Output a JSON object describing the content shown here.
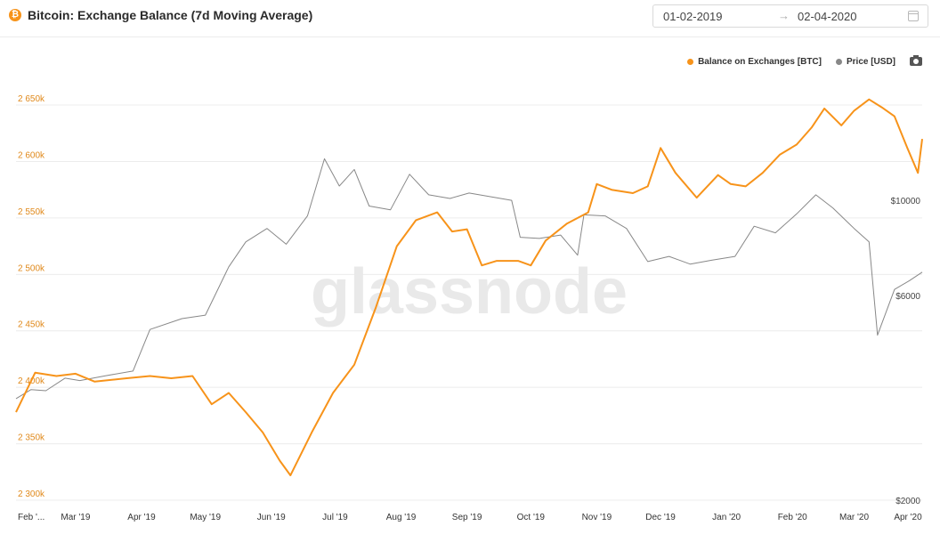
{
  "header": {
    "icon": "bitcoin-icon",
    "icon_glyph": "₿",
    "title": "Bitcoin: Exchange Balance (7d Moving Average)"
  },
  "date_range": {
    "start": "01-02-2019",
    "arrow": "→",
    "end": "02-04-2020",
    "icon": "calendar-icon"
  },
  "legend": {
    "items": [
      {
        "label": "Balance on Exchanges [BTC]",
        "color": "#f7931a"
      },
      {
        "label": "Price [USD]",
        "color": "#888888"
      }
    ],
    "camera_icon": "camera-icon"
  },
  "watermark": "glassnode",
  "chart_data": {
    "type": "line",
    "title": "Bitcoin: Exchange Balance (7d Moving Average)",
    "x_range": [
      "2019-02-01",
      "2020-04-02"
    ],
    "x_ticks": [
      {
        "label": "Feb '...",
        "date": "2019-02-01"
      },
      {
        "label": "Mar '19",
        "date": "2019-03-01"
      },
      {
        "label": "Apr '19",
        "date": "2019-04-01"
      },
      {
        "label": "May '19",
        "date": "2019-05-01"
      },
      {
        "label": "Jun '19",
        "date": "2019-06-01"
      },
      {
        "label": "Jul '19",
        "date": "2019-07-01"
      },
      {
        "label": "Aug '19",
        "date": "2019-08-01"
      },
      {
        "label": "Sep '19",
        "date": "2019-09-01"
      },
      {
        "label": "Oct '19",
        "date": "2019-10-01"
      },
      {
        "label": "Nov '19",
        "date": "2019-11-01"
      },
      {
        "label": "Dec '19",
        "date": "2019-12-01"
      },
      {
        "label": "Jan '20",
        "date": "2020-01-01"
      },
      {
        "label": "Feb '20",
        "date": "2020-02-01"
      },
      {
        "label": "Mar '20",
        "date": "2020-03-01"
      },
      {
        "label": "Apr '20",
        "date": "2020-04-01"
      }
    ],
    "left_axis": {
      "range": [
        2300000,
        2680000
      ],
      "ticks": [
        {
          "label": "2 300k",
          "value": 2300000
        },
        {
          "label": "2 350k",
          "value": 2350000
        },
        {
          "label": "2 400k",
          "value": 2400000
        },
        {
          "label": "2 450k",
          "value": 2450000
        },
        {
          "label": "2 500k",
          "value": 2500000
        },
        {
          "label": "2 550k",
          "value": 2550000
        },
        {
          "label": "2 600k",
          "value": 2600000
        },
        {
          "label": "2 650k",
          "value": 2650000
        }
      ]
    },
    "right_axis": {
      "scale": "log",
      "range": [
        2000,
        20000
      ],
      "ticks": [
        {
          "label": "$2000",
          "value": 2000
        },
        {
          "label": "$6000",
          "value": 6000
        },
        {
          "label": "$10000",
          "value": 10000
        }
      ]
    },
    "grid": true,
    "series": [
      {
        "name": "Balance on Exchanges [BTC]",
        "axis": "left",
        "color": "#f7931a",
        "points": [
          [
            "2019-02-01",
            2378000
          ],
          [
            "2019-02-10",
            2413000
          ],
          [
            "2019-02-20",
            2410000
          ],
          [
            "2019-03-01",
            2412000
          ],
          [
            "2019-03-10",
            2405000
          ],
          [
            "2019-03-25",
            2408000
          ],
          [
            "2019-04-05",
            2410000
          ],
          [
            "2019-04-15",
            2408000
          ],
          [
            "2019-04-25",
            2410000
          ],
          [
            "2019-05-04",
            2385000
          ],
          [
            "2019-05-12",
            2395000
          ],
          [
            "2019-05-20",
            2378000
          ],
          [
            "2019-05-28",
            2360000
          ],
          [
            "2019-06-05",
            2335000
          ],
          [
            "2019-06-10",
            2322000
          ],
          [
            "2019-06-20",
            2360000
          ],
          [
            "2019-06-30",
            2395000
          ],
          [
            "2019-07-10",
            2420000
          ],
          [
            "2019-07-20",
            2470000
          ],
          [
            "2019-07-30",
            2525000
          ],
          [
            "2019-08-08",
            2548000
          ],
          [
            "2019-08-18",
            2555000
          ],
          [
            "2019-08-25",
            2538000
          ],
          [
            "2019-09-01",
            2540000
          ],
          [
            "2019-09-08",
            2508000
          ],
          [
            "2019-09-15",
            2512000
          ],
          [
            "2019-09-25",
            2512000
          ],
          [
            "2019-10-01",
            2508000
          ],
          [
            "2019-10-08",
            2530000
          ],
          [
            "2019-10-18",
            2545000
          ],
          [
            "2019-10-28",
            2555000
          ],
          [
            "2019-11-01",
            2580000
          ],
          [
            "2019-11-08",
            2575000
          ],
          [
            "2019-11-18",
            2572000
          ],
          [
            "2019-11-25",
            2578000
          ],
          [
            "2019-12-01",
            2612000
          ],
          [
            "2019-12-08",
            2590000
          ],
          [
            "2019-12-18",
            2568000
          ],
          [
            "2019-12-28",
            2588000
          ],
          [
            "2020-01-03",
            2580000
          ],
          [
            "2020-01-10",
            2578000
          ],
          [
            "2020-01-18",
            2590000
          ],
          [
            "2020-01-26",
            2606000
          ],
          [
            "2020-02-03",
            2615000
          ],
          [
            "2020-02-10",
            2630000
          ],
          [
            "2020-02-16",
            2647000
          ],
          [
            "2020-02-24",
            2632000
          ],
          [
            "2020-03-01",
            2645000
          ],
          [
            "2020-03-08",
            2655000
          ],
          [
            "2020-03-14",
            2648000
          ],
          [
            "2020-03-20",
            2640000
          ],
          [
            "2020-03-26",
            2612000
          ],
          [
            "2020-03-31",
            2590000
          ],
          [
            "2020-04-02",
            2620000
          ]
        ]
      },
      {
        "name": "Price [USD]",
        "axis": "right",
        "color": "#888888",
        "points": [
          [
            "2019-02-01",
            3450
          ],
          [
            "2019-02-08",
            3620
          ],
          [
            "2019-02-15",
            3600
          ],
          [
            "2019-02-24",
            3850
          ],
          [
            "2019-03-03",
            3800
          ],
          [
            "2019-03-15",
            3900
          ],
          [
            "2019-03-28",
            4000
          ],
          [
            "2019-04-05",
            5000
          ],
          [
            "2019-04-20",
            5300
          ],
          [
            "2019-05-01",
            5400
          ],
          [
            "2019-05-12",
            7000
          ],
          [
            "2019-05-20",
            8000
          ],
          [
            "2019-05-30",
            8600
          ],
          [
            "2019-06-08",
            7900
          ],
          [
            "2019-06-18",
            9200
          ],
          [
            "2019-06-26",
            12500
          ],
          [
            "2019-07-03",
            10800
          ],
          [
            "2019-07-10",
            11800
          ],
          [
            "2019-07-17",
            9700
          ],
          [
            "2019-07-27",
            9500
          ],
          [
            "2019-08-05",
            11500
          ],
          [
            "2019-08-14",
            10300
          ],
          [
            "2019-08-24",
            10100
          ],
          [
            "2019-09-02",
            10400
          ],
          [
            "2019-09-12",
            10200
          ],
          [
            "2019-09-22",
            10000
          ],
          [
            "2019-09-26",
            8200
          ],
          [
            "2019-10-05",
            8150
          ],
          [
            "2019-10-15",
            8300
          ],
          [
            "2019-10-23",
            7450
          ],
          [
            "2019-10-26",
            9250
          ],
          [
            "2019-11-05",
            9200
          ],
          [
            "2019-11-15",
            8600
          ],
          [
            "2019-11-25",
            7200
          ],
          [
            "2019-12-05",
            7400
          ],
          [
            "2019-12-15",
            7100
          ],
          [
            "2019-12-25",
            7250
          ],
          [
            "2020-01-05",
            7400
          ],
          [
            "2020-01-14",
            8700
          ],
          [
            "2020-01-24",
            8400
          ],
          [
            "2020-02-03",
            9300
          ],
          [
            "2020-02-12",
            10300
          ],
          [
            "2020-02-20",
            9600
          ],
          [
            "2020-03-01",
            8600
          ],
          [
            "2020-03-08",
            8000
          ],
          [
            "2020-03-12",
            4850
          ],
          [
            "2020-03-20",
            6200
          ],
          [
            "2020-03-27",
            6500
          ],
          [
            "2020-04-02",
            6800
          ]
        ]
      }
    ]
  }
}
